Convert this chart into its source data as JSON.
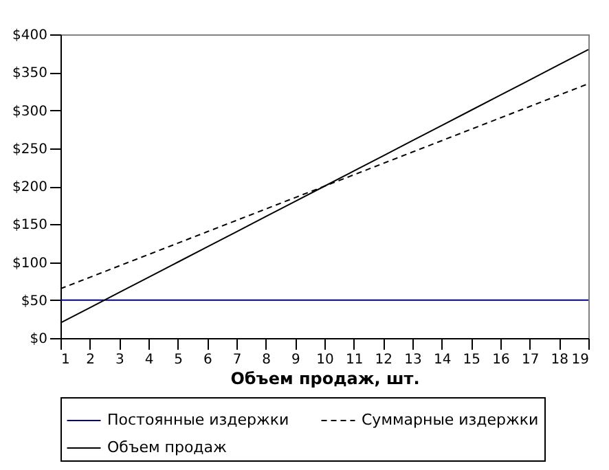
{
  "chart_data": {
    "type": "line",
    "xlabel": "Объем продаж, шт.",
    "x": [
      1,
      2,
      3,
      4,
      5,
      6,
      7,
      8,
      9,
      10,
      11,
      12,
      13,
      14,
      15,
      16,
      17,
      18,
      19
    ],
    "xlim": [
      1,
      19
    ],
    "xticks": [
      1,
      2,
      3,
      4,
      5,
      6,
      7,
      8,
      9,
      10,
      11,
      12,
      13,
      14,
      15,
      16,
      17,
      18,
      19
    ],
    "ylim": [
      0,
      400
    ],
    "yticks": [
      {
        "value": 0,
        "label": "$0"
      },
      {
        "value": 50,
        "label": "$50"
      },
      {
        "value": 100,
        "label": "$100"
      },
      {
        "value": 150,
        "label": "$150"
      },
      {
        "value": 200,
        "label": "$200"
      },
      {
        "value": 250,
        "label": "$250"
      },
      {
        "value": 300,
        "label": "$300"
      },
      {
        "value": 350,
        "label": "$350"
      },
      {
        "value": 400,
        "label": "$400"
      }
    ],
    "grid": false,
    "legend": "bottom",
    "marker": "none",
    "series": [
      {
        "name": "Постоянные издержки",
        "color": "#000080",
        "line_style": "solid",
        "values": [
          50,
          50,
          50,
          50,
          50,
          50,
          50,
          50,
          50,
          50,
          50,
          50,
          50,
          50,
          50,
          50,
          50,
          50,
          50
        ]
      },
      {
        "name": "Суммарные издержки",
        "color": "#000000",
        "line_style": "dashed",
        "values": [
          65,
          80,
          95,
          110,
          125,
          140,
          155,
          170,
          185,
          200,
          215,
          230,
          245,
          260,
          275,
          290,
          305,
          320,
          335
        ]
      },
      {
        "name": "Объем продаж",
        "color": "#000000",
        "line_style": "solid",
        "values": [
          20,
          40,
          60,
          80,
          100,
          120,
          140,
          160,
          180,
          200,
          220,
          240,
          260,
          280,
          300,
          320,
          340,
          360,
          380
        ]
      }
    ]
  }
}
